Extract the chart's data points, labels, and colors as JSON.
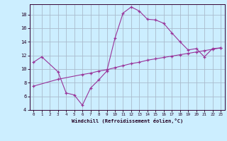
{
  "xlabel": "Windchill (Refroidissement éolien,°C)",
  "bg_color": "#cceeff",
  "grid_color": "#aabbcc",
  "line_color": "#993399",
  "curve1_x": [
    0,
    1,
    3,
    4,
    5,
    6,
    7,
    8,
    9,
    10,
    11,
    12,
    13,
    14,
    15,
    16,
    17,
    18,
    19,
    20,
    21,
    22,
    23
  ],
  "curve1_y": [
    11.0,
    11.8,
    9.6,
    6.5,
    6.2,
    4.7,
    7.2,
    8.4,
    9.7,
    14.5,
    18.2,
    19.1,
    18.5,
    17.3,
    17.2,
    16.7,
    15.3,
    14.0,
    12.8,
    13.0,
    11.8,
    13.0,
    13.1
  ],
  "curve2_x": [
    0,
    3,
    6,
    7,
    8,
    9,
    10,
    11,
    12,
    13,
    14,
    15,
    16,
    17,
    18,
    19,
    20,
    21,
    22,
    23
  ],
  "curve2_y": [
    7.5,
    8.5,
    9.2,
    9.4,
    9.7,
    9.9,
    10.2,
    10.5,
    10.8,
    11.0,
    11.3,
    11.5,
    11.7,
    11.9,
    12.1,
    12.3,
    12.5,
    12.7,
    12.9,
    13.1
  ],
  "xlim": [
    -0.5,
    23.5
  ],
  "ylim": [
    4,
    19.5
  ],
  "yticks": [
    4,
    6,
    8,
    10,
    12,
    14,
    16,
    18
  ],
  "xticks": [
    0,
    1,
    2,
    3,
    4,
    5,
    6,
    7,
    8,
    9,
    10,
    11,
    12,
    13,
    14,
    15,
    16,
    17,
    18,
    19,
    20,
    21,
    22,
    23
  ]
}
